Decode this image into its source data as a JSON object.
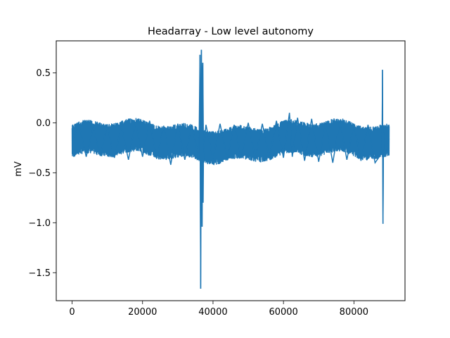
{
  "chart_data": {
    "type": "line",
    "title": "Headarray - Low level autonomy",
    "xlabel": "",
    "ylabel": "mV",
    "xlim": [
      -4500,
      94500
    ],
    "ylim": [
      -1.78,
      0.82
    ],
    "grid": false,
    "legend": "none",
    "x_ticks": [
      0,
      20000,
      40000,
      60000,
      80000
    ],
    "x_tick_labels": [
      "0",
      "20000",
      "40000",
      "60000",
      "80000"
    ],
    "y_ticks": [
      0.5,
      0.0,
      -0.5,
      -1.0,
      -1.5
    ],
    "y_tick_labels": [
      "0.5",
      "0.0",
      "−0.5",
      "−1.0",
      "−1.5"
    ],
    "series": [
      {
        "color": "#1f77b4",
        "sample_count": 90000,
        "x_range": [
          0,
          90000
        ],
        "baseline_band": {
          "x": [
            0,
            90000
          ],
          "low": -0.35,
          "high": -0.02,
          "center": -0.18
        },
        "values": [
          [
            0,
            -0.18
          ],
          [
            2000,
            -0.02
          ],
          [
            4000,
            -0.34
          ],
          [
            6000,
            -0.05
          ],
          [
            8000,
            -0.33
          ],
          [
            10000,
            -0.03
          ],
          [
            12000,
            -0.35
          ],
          [
            14000,
            -0.04
          ],
          [
            16000,
            -0.37
          ],
          [
            18000,
            0.0
          ],
          [
            20000,
            -0.34
          ],
          [
            22000,
            0.02
          ],
          [
            24000,
            -0.36
          ],
          [
            26000,
            -0.03
          ],
          [
            28000,
            -0.42
          ],
          [
            30000,
            -0.01
          ],
          [
            32000,
            -0.37
          ],
          [
            34000,
            -0.02
          ],
          [
            36000,
            -0.36
          ],
          [
            36300,
            0.68
          ],
          [
            36500,
            -1.66
          ],
          [
            36700,
            0.73
          ],
          [
            36900,
            -1.04
          ],
          [
            37100,
            0.6
          ],
          [
            37300,
            -0.3
          ],
          [
            38000,
            -0.02
          ],
          [
            40000,
            -0.36
          ],
          [
            42000,
            -0.01
          ],
          [
            44000,
            -0.35
          ],
          [
            46000,
            -0.02
          ],
          [
            48000,
            -0.35
          ],
          [
            50000,
            0.0
          ],
          [
            52000,
            -0.36
          ],
          [
            54000,
            -0.01
          ],
          [
            56000,
            -0.35
          ],
          [
            58000,
            0.02
          ],
          [
            60000,
            -0.35
          ],
          [
            61700,
            0.1
          ],
          [
            62500,
            -0.34
          ],
          [
            64000,
            0.05
          ],
          [
            66000,
            -0.38
          ],
          [
            68000,
            0.04
          ],
          [
            70000,
            -0.39
          ],
          [
            72000,
            0.0
          ],
          [
            74000,
            -0.4
          ],
          [
            76000,
            0.02
          ],
          [
            78000,
            -0.37
          ],
          [
            80000,
            -0.01
          ],
          [
            82000,
            -0.38
          ],
          [
            84000,
            -0.02
          ],
          [
            86000,
            -0.4
          ],
          [
            88000,
            -0.3
          ],
          [
            88100,
            0.53
          ],
          [
            88250,
            -1.01
          ],
          [
            88400,
            -0.1
          ],
          [
            89000,
            -0.34
          ],
          [
            90000,
            -0.16
          ]
        ]
      }
    ]
  }
}
